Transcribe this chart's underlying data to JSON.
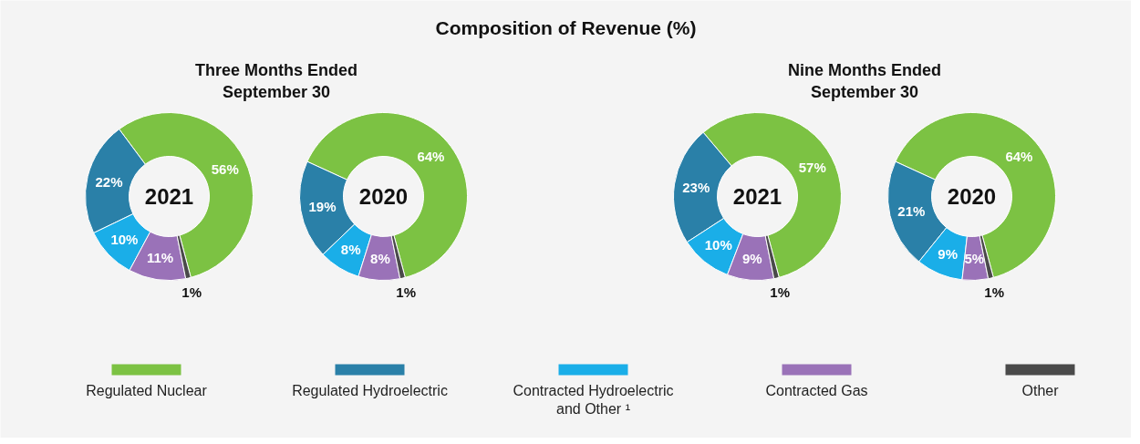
{
  "chart_data": [
    {
      "type": "donut",
      "title": "Composition of Revenue (%)",
      "subtitle": "Three Months Ended September 30",
      "annotations": [
        "2021"
      ],
      "categories": [
        "Regulated Nuclear",
        "Regulated Hydroelectric",
        "Contracted Hydroelectric and Other ¹",
        "Contracted Gas",
        "Other"
      ],
      "values": [
        56,
        22,
        10,
        11,
        1
      ],
      "value_labels": [
        "56%",
        "22%",
        "10%",
        "11%",
        "1%"
      ],
      "colors": [
        "#7cc243",
        "#2a80a8",
        "#1aaee8",
        "#9a72b8",
        "#4a4a4a"
      ],
      "legend": "bottom"
    },
    {
      "type": "donut",
      "annotations": [
        "2020"
      ],
      "categories": [
        null,
        null,
        null,
        null,
        null
      ],
      "values": [
        64,
        19,
        8,
        8,
        1
      ],
      "value_labels": [
        "64%",
        "19%",
        "8%",
        "8%",
        "1%"
      ],
      "colors": [
        "#7cc243",
        "#2a80a8",
        "#1aaee8",
        "#9a72b8",
        "#4a4a4a"
      ]
    },
    {
      "type": "donut",
      "subtitle": "Nine Months Ended September 30",
      "annotations": [
        "2021"
      ],
      "categories": [
        null,
        null,
        null,
        null,
        null
      ],
      "values": [
        57,
        23,
        10,
        9,
        1
      ],
      "value_labels": [
        "57%",
        "23%",
        "10%",
        "9%",
        "1%"
      ],
      "colors": [
        "#7cc243",
        "#2a80a8",
        "#1aaee8",
        "#9a72b8",
        "#4a4a4a"
      ]
    },
    {
      "type": "donut",
      "annotations": [
        "2020"
      ],
      "categories": [
        null,
        null,
        null,
        null,
        null
      ],
      "values": [
        64,
        21,
        9,
        5,
        1
      ],
      "value_labels": [
        "64%",
        "21%",
        "9%",
        "5%",
        "1%"
      ],
      "colors": [
        "#7cc243",
        "#2a80a8",
        "#1aaee8",
        "#9a72b8",
        "#4a4a4a"
      ]
    }
  ]
}
